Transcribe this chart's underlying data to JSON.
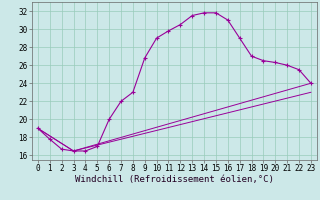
{
  "bg_color": "#cce8e8",
  "grid_color": "#99ccbb",
  "line_color": "#990099",
  "xlim": [
    -0.5,
    23.5
  ],
  "ylim": [
    15.5,
    33
  ],
  "xticks": [
    0,
    1,
    2,
    3,
    4,
    5,
    6,
    7,
    8,
    9,
    10,
    11,
    12,
    13,
    14,
    15,
    16,
    17,
    18,
    19,
    20,
    21,
    22,
    23
  ],
  "yticks": [
    16,
    18,
    20,
    22,
    24,
    26,
    28,
    30,
    32
  ],
  "xlabel": "Windchill (Refroidissement éolien,°C)",
  "line1_x": [
    0,
    1,
    2,
    3,
    4,
    5,
    6,
    7,
    8,
    9,
    10,
    11,
    12,
    13,
    14,
    15,
    16,
    17,
    18,
    19,
    20,
    21,
    22,
    23
  ],
  "line1_y": [
    19.0,
    17.8,
    16.7,
    16.5,
    16.5,
    17.0,
    20.0,
    22.0,
    23.0,
    26.8,
    29.0,
    29.8,
    30.5,
    31.5,
    31.8,
    31.8,
    31.0,
    29.0,
    27.0,
    26.5,
    26.3,
    26.0,
    25.5,
    24.0
  ],
  "line2_x": [
    0,
    3,
    23
  ],
  "line2_y": [
    19.0,
    16.5,
    24.0
  ],
  "line3_x": [
    0,
    3,
    23
  ],
  "line3_y": [
    19.0,
    16.5,
    23.0
  ],
  "tick_fontsize": 5.5,
  "label_fontsize": 6.5
}
